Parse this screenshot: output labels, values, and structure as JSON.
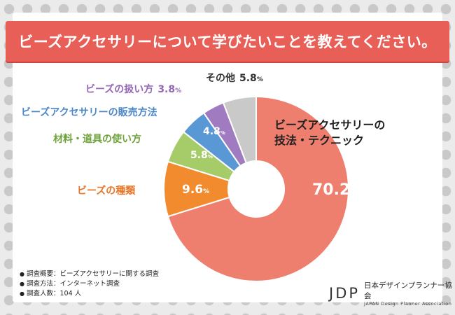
{
  "title": "ビーズアクセサリーについて学びたいことを教えてください。",
  "chart_data": {
    "type": "pie",
    "donut": true,
    "unit": "%",
    "slices": [
      {
        "name": "ビーズアクセサリーの技法・テクニック",
        "label_lines": [
          "ビーズアクセサリーの",
          "技法・テクニック"
        ],
        "value": 70.2,
        "color": "#ee7e6d",
        "label_color": "#222222"
      },
      {
        "name": "ビーズの種類",
        "value": 9.6,
        "color": "#f28a2e",
        "label_color": "#e8772a"
      },
      {
        "name": "材料・道具の使い方",
        "value": 5.8,
        "color": "#a6cc6a",
        "label_color": "#6ea23a"
      },
      {
        "name": "ビーズアクセサリーの販売方法",
        "value": 4.8,
        "color": "#5a97d5",
        "label_color": "#4b87c9"
      },
      {
        "name": "ビーズの扱い方",
        "value": 3.8,
        "color": "#a17bc0",
        "label_color": "#9467b5"
      },
      {
        "name": "その他",
        "value": 5.8,
        "color": "#c9c9c9",
        "label_color": "#333333"
      }
    ]
  },
  "notes": [
    "調査概要：ビーズアクセサリーに関する調査",
    "調査方法：インターネット調査",
    "調査人数：104 人"
  ],
  "logo": {
    "mark": "JDP",
    "name_jp": "日本デザインプランナー協会",
    "name_en": "JAPAN Design Planner Association"
  }
}
